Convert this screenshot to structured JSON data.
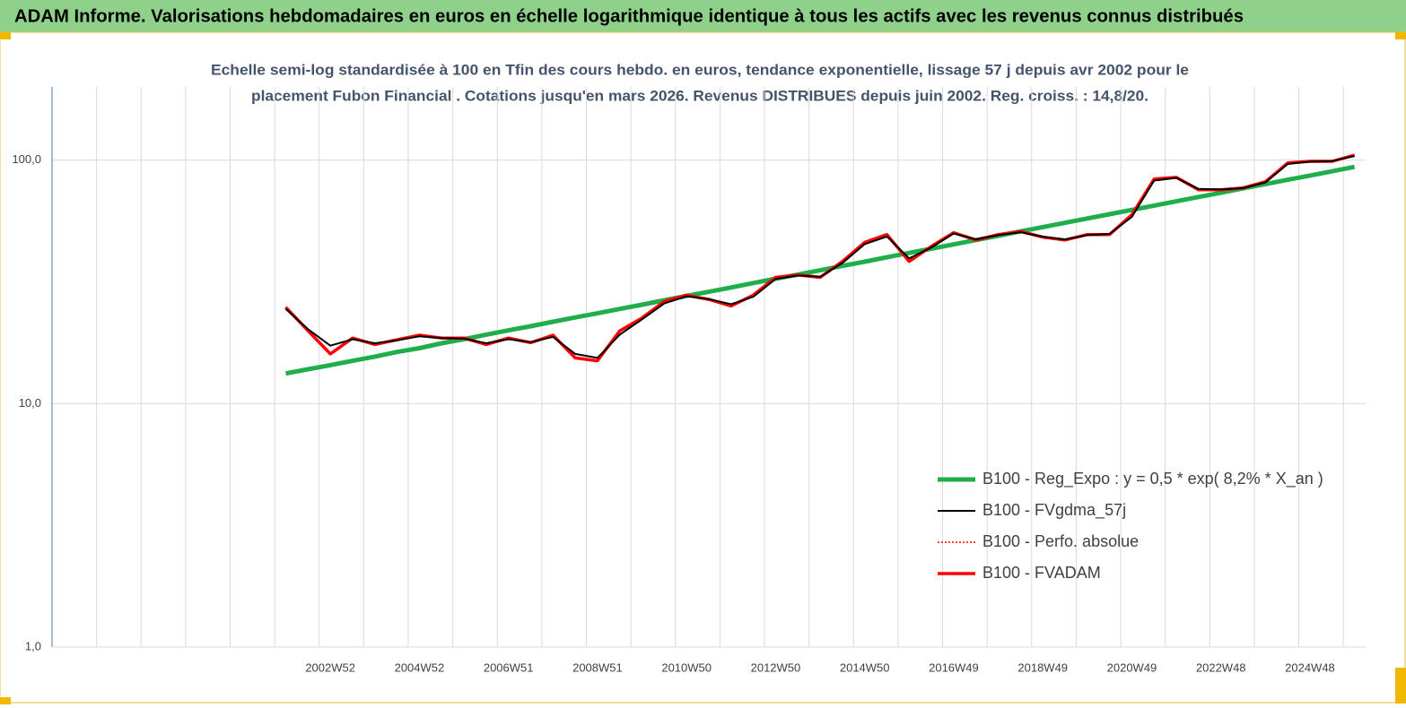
{
  "header": {
    "title": "ADAM Informe. Valorisations hebdomadaires en euros en échelle logarithmique identique à tous les actifs avec les revenus connus distribués"
  },
  "chart_data": {
    "type": "line",
    "title": [
      "Echelle semi-log standardisée à 100 en Tfin des cours hebdo. en euros, tendance exponentielle, lissage 57 j depuis avr 2002 pour le",
      "placement Fubon Financial . Cotations jusqu'en mars 2026.  Revenus DISTRIBUES depuis juin 2002. Reg. croiss. : 14,8/20."
    ],
    "log_scale": true,
    "grid": true,
    "legend_position": "lower right",
    "ylim": [
      1,
      200
    ],
    "yticks": [
      {
        "value": 1,
        "label": "1,0"
      },
      {
        "value": 10,
        "label": "10,0"
      },
      {
        "value": 100,
        "label": "100,0"
      }
    ],
    "categories": [
      null,
      null,
      null,
      null,
      null,
      null,
      null,
      null,
      null,
      null,
      null,
      null,
      "2002W52",
      null,
      null,
      null,
      "2004W52",
      null,
      null,
      null,
      "2006W51",
      null,
      null,
      null,
      "2008W51",
      null,
      null,
      null,
      "2010W50",
      null,
      null,
      null,
      "2012W50",
      null,
      null,
      null,
      "2014W50",
      null,
      null,
      null,
      "2016W49",
      null,
      null,
      null,
      "2018W49",
      null,
      null,
      null,
      "2020W49",
      null,
      null,
      null,
      "2022W48",
      null,
      null,
      null,
      "2024W48",
      null,
      null
    ],
    "series": [
      {
        "name": "B100 - Reg_Expo : y = 0,5 *  exp( 8,2% *  X_an )",
        "color": "#1fae4b",
        "width": 5,
        "line_style": "solid",
        "values": [
          null,
          null,
          null,
          null,
          null,
          null,
          null,
          null,
          null,
          null,
          13.3,
          13.85,
          14.4,
          15.0,
          15.6,
          16.3,
          16.9,
          17.7,
          18.4,
          19.2,
          20.0,
          20.8,
          21.7,
          22.6,
          23.5,
          24.5,
          25.5,
          26.6,
          27.7,
          28.8,
          30.0,
          31.3,
          32.6,
          33.9,
          35.3,
          36.8,
          38.3,
          39.9,
          41.6,
          43.3,
          45.1,
          47.0,
          48.9,
          51.0,
          53.1,
          55.3,
          57.6,
          60.0,
          62.5,
          65.1,
          67.8,
          70.6,
          73.5,
          76.6,
          79.8,
          83.1,
          86.5,
          90.1,
          93.9
        ]
      },
      {
        "name": "B100 - FVgdma_57j",
        "color": "#000000",
        "width": 2,
        "line_style": "solid",
        "values": [
          null,
          null,
          null,
          null,
          null,
          null,
          null,
          null,
          null,
          null,
          24.5,
          20.2,
          17.3,
          18.4,
          17.7,
          18.2,
          18.9,
          18.6,
          18.5,
          17.7,
          18.4,
          17.9,
          18.8,
          16.0,
          15.4,
          19.2,
          22.2,
          25.8,
          27.6,
          26.9,
          25.6,
          27.5,
          32.5,
          33.6,
          33.2,
          37.8,
          45.2,
          48.6,
          39.5,
          43.8,
          50.0,
          47.3,
          49.2,
          50.6,
          48.5,
          47.3,
          49.2,
          49.8,
          58.5,
          82.5,
          84.6,
          76.2,
          75.8,
          76.8,
          81.0,
          96.5,
          98.6,
          99.2,
          104
        ]
      },
      {
        "name": "B100 - Perfo. absolue",
        "color": "#ff0000",
        "width": 1.5,
        "line_style": "dotted",
        "values": [
          null,
          null,
          null,
          null,
          null,
          null,
          null,
          null,
          null,
          null,
          24.9,
          19.9,
          16.0,
          18.6,
          17.5,
          18.3,
          19.1,
          18.6,
          18.6,
          17.5,
          18.6,
          17.8,
          19.1,
          15.4,
          15.0,
          19.9,
          22.5,
          26.3,
          27.9,
          26.8,
          25.2,
          27.9,
          33.0,
          33.8,
          33.0,
          38.4,
          46.0,
          49.5,
          38.4,
          44.3,
          50.4,
          47.0,
          49.5,
          51.0,
          48.3,
          47.0,
          49.5,
          49.5,
          59.7,
          83.7,
          85.0,
          75.6,
          75.6,
          76.9,
          81.6,
          97.5,
          99.0,
          99.0,
          105
        ]
      },
      {
        "name": "B100 - FVADAM",
        "color": "#ff0000",
        "width": 3.5,
        "line_style": "solid",
        "values": [
          null,
          null,
          null,
          null,
          null,
          null,
          null,
          null,
          null,
          null,
          24.9,
          19.9,
          16.0,
          18.6,
          17.5,
          18.3,
          19.1,
          18.6,
          18.6,
          17.5,
          18.6,
          17.8,
          19.1,
          15.4,
          15.0,
          19.9,
          22.5,
          26.3,
          27.9,
          26.8,
          25.2,
          27.9,
          33.0,
          33.8,
          33.0,
          38.4,
          46.0,
          49.5,
          38.4,
          44.3,
          50.4,
          47.0,
          49.5,
          51.0,
          48.3,
          47.0,
          49.5,
          49.5,
          59.7,
          83.7,
          85.0,
          75.6,
          75.6,
          76.9,
          81.6,
          97.5,
          99.0,
          99.0,
          105
        ]
      }
    ]
  }
}
